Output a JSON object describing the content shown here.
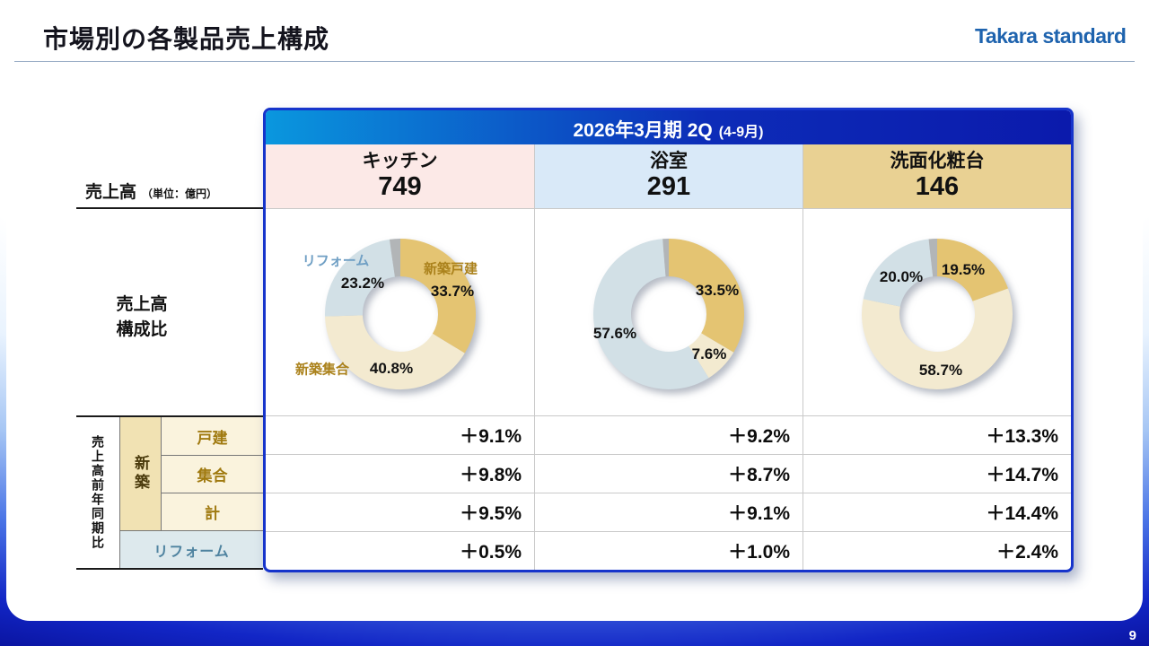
{
  "slide": {
    "title": "市場別の各製品売上構成",
    "logo": "Takara standard",
    "page_number": "9"
  },
  "header": {
    "period_main": "2026年3月期 2Q",
    "period_sub": "(4-9月)"
  },
  "left_labels": {
    "sales": "売上高",
    "sales_unit": "（単位：億円）",
    "composition_line1": "売上高",
    "composition_line2": "構成比",
    "yoy_vertical": "売上高前年同期比",
    "shinchiku": "新築"
  },
  "products": [
    {
      "name": "キッチン",
      "sales": "749"
    },
    {
      "name": "浴室",
      "sales": "291"
    },
    {
      "name": "洗面化粧台",
      "sales": "146"
    }
  ],
  "yoy": {
    "row_labels": [
      "戸建",
      "集合",
      "計",
      "リフォーム"
    ],
    "rows": [
      {
        "label": "戸建",
        "values": [
          "＋9.1%",
          "＋9.2%",
          "＋13.3%"
        ]
      },
      {
        "label": "集合",
        "values": [
          "＋9.8%",
          "＋8.7%",
          "＋14.7%"
        ]
      },
      {
        "label": "計",
        "values": [
          "＋9.5%",
          "＋9.1%",
          "＋14.4%"
        ]
      },
      {
        "label": "リフォーム",
        "values": [
          "＋0.5%",
          "＋1.0%",
          "＋2.4%"
        ]
      }
    ]
  },
  "palette": {
    "box_border_blue": "#1634cb",
    "header_gradient_left": "#0a97de",
    "header_gradient_right": "#0b1aac",
    "kitchen_header_bg": "#fce9e7",
    "bath_header_bg": "#d9e9f8",
    "wash_header_bg": "#e9d193",
    "logo_blue": "#1e63ae"
  },
  "chart_data": [
    {
      "type": "pie",
      "variant": "donut",
      "title": "キッチン",
      "unit": "%",
      "segments": [
        {
          "label": "新築戸建",
          "value": 33.7,
          "color": "#e4c472"
        },
        {
          "label": "新築集合",
          "value": 40.8,
          "color": "#f3ead0"
        },
        {
          "label": "リフォーム",
          "value": 23.2,
          "color": "#d2e0e6"
        },
        {
          "label": "",
          "value": 2.3,
          "color": "#b2b5b7"
        }
      ],
      "callouts": [
        {
          "text": "リフォーム"
        },
        {
          "text": "23.2%"
        },
        {
          "text": "新築戸建"
        },
        {
          "text": "33.7%"
        },
        {
          "text": "新築集合"
        },
        {
          "text": "40.8%"
        }
      ]
    },
    {
      "type": "pie",
      "variant": "donut",
      "title": "浴室",
      "unit": "%",
      "segments": [
        {
          "label": "新築戸建",
          "value": 33.5,
          "color": "#e4c472"
        },
        {
          "label": "新築集合",
          "value": 7.6,
          "color": "#f3ead0"
        },
        {
          "label": "リフォーム",
          "value": 57.6,
          "color": "#d2e0e6"
        },
        {
          "label": "",
          "value": 1.3,
          "color": "#b2b5b7"
        }
      ],
      "callouts": [
        {
          "text": "33.5%"
        },
        {
          "text": "57.6%"
        },
        {
          "text": "7.6%"
        }
      ]
    },
    {
      "type": "pie",
      "variant": "donut",
      "title": "洗面化粧台",
      "unit": "%",
      "segments": [
        {
          "label": "新築戸建",
          "value": 19.5,
          "color": "#e4c472"
        },
        {
          "label": "新築集合",
          "value": 58.7,
          "color": "#f3ead0"
        },
        {
          "label": "リフォーム",
          "value": 20.0,
          "color": "#d2e0e6"
        },
        {
          "label": "",
          "value": 1.8,
          "color": "#b2b5b7"
        }
      ],
      "callouts": [
        {
          "text": "20.0%"
        },
        {
          "text": "19.5%"
        },
        {
          "text": "58.7%"
        }
      ]
    }
  ]
}
